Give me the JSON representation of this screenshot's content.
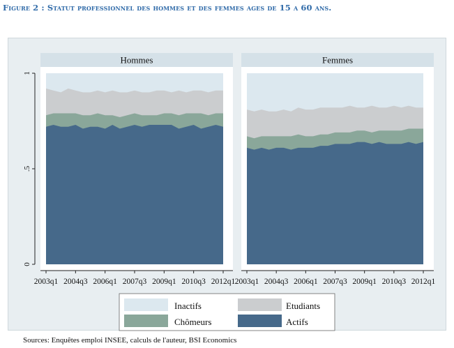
{
  "figure_title": "Figure 2 : Statut professionnel des hommes et des femmes ages de 15 a 60 ans.",
  "source": "Sources: Enquêtes emploi INSEE, calculs de l'auteur, BSI Economics",
  "colors": {
    "inactifs": "#dce8ef",
    "etudiants": "#cbcdcf",
    "chomeurs": "#8aa79a",
    "actifs": "#46698a",
    "title": "#2f6aa8",
    "strip": "#d5e1e8"
  },
  "chart_data": {
    "type": "area",
    "stacked": true,
    "x_ticks": [
      "2003q1",
      "2004q3",
      "2006q1",
      "2007q3",
      "2009q1",
      "2010q3",
      "2012q1"
    ],
    "y_ticks": [
      "0",
      ".5",
      "1"
    ],
    "ylim": [
      0,
      1
    ],
    "legend": {
      "position": "bottom",
      "entries": [
        "Inactifs",
        "Etudiants",
        "Chômeurs",
        "Actifs"
      ]
    },
    "panels": [
      {
        "title": "Hommes",
        "actifs": [
          0.72,
          0.73,
          0.72,
          0.72,
          0.73,
          0.71,
          0.72,
          0.72,
          0.71,
          0.73,
          0.71,
          0.72,
          0.73,
          0.72,
          0.73,
          0.73,
          0.73,
          0.73,
          0.71,
          0.72,
          0.73,
          0.71,
          0.72,
          0.73,
          0.72
        ],
        "chomeurs": [
          0.78,
          0.79,
          0.79,
          0.79,
          0.79,
          0.78,
          0.78,
          0.79,
          0.78,
          0.78,
          0.77,
          0.78,
          0.79,
          0.78,
          0.78,
          0.78,
          0.79,
          0.79,
          0.78,
          0.79,
          0.79,
          0.79,
          0.78,
          0.79,
          0.79
        ],
        "etudiants": [
          0.92,
          0.91,
          0.9,
          0.92,
          0.91,
          0.9,
          0.9,
          0.91,
          0.9,
          0.91,
          0.9,
          0.9,
          0.91,
          0.9,
          0.9,
          0.91,
          0.91,
          0.9,
          0.91,
          0.9,
          0.91,
          0.91,
          0.9,
          0.91,
          0.91
        ],
        "inactifs": [
          1,
          1,
          1,
          1,
          1,
          1,
          1,
          1,
          1,
          1,
          1,
          1,
          1,
          1,
          1,
          1,
          1,
          1,
          1,
          1,
          1,
          1,
          1,
          1,
          1
        ]
      },
      {
        "title": "Femmes",
        "actifs": [
          0.61,
          0.6,
          0.61,
          0.6,
          0.61,
          0.61,
          0.6,
          0.61,
          0.61,
          0.61,
          0.62,
          0.62,
          0.63,
          0.63,
          0.63,
          0.64,
          0.64,
          0.63,
          0.64,
          0.63,
          0.63,
          0.63,
          0.64,
          0.63,
          0.64
        ],
        "chomeurs": [
          0.67,
          0.66,
          0.67,
          0.67,
          0.67,
          0.67,
          0.67,
          0.68,
          0.67,
          0.67,
          0.68,
          0.68,
          0.69,
          0.69,
          0.69,
          0.7,
          0.7,
          0.69,
          0.7,
          0.7,
          0.7,
          0.7,
          0.71,
          0.71,
          0.71
        ],
        "etudiants": [
          0.81,
          0.8,
          0.81,
          0.8,
          0.8,
          0.81,
          0.8,
          0.82,
          0.81,
          0.81,
          0.82,
          0.82,
          0.82,
          0.82,
          0.83,
          0.82,
          0.82,
          0.83,
          0.82,
          0.82,
          0.83,
          0.82,
          0.83,
          0.82,
          0.82
        ],
        "inactifs": [
          1,
          1,
          1,
          1,
          1,
          1,
          1,
          1,
          1,
          1,
          1,
          1,
          1,
          1,
          1,
          1,
          1,
          1,
          1,
          1,
          1,
          1,
          1,
          1,
          1
        ]
      }
    ]
  }
}
